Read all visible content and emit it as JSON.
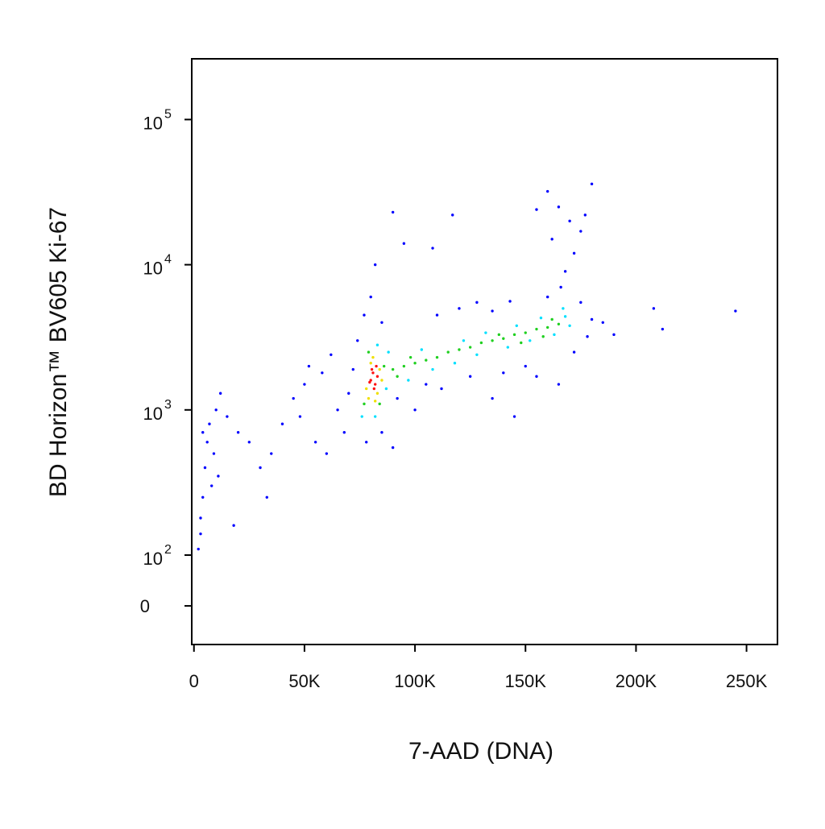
{
  "chart_data": {
    "type": "scatter",
    "x_label": "7-AAD (DNA)",
    "y_label": "BD Horizon™ BV605 Ki-67",
    "xlim": [
      -1000,
      264000
    ],
    "xticks": [
      0,
      {
        "value": 50000,
        "label": "50K"
      },
      {
        "value": 100000,
        "label": "100K"
      },
      {
        "value": 150000,
        "label": "150K"
      },
      {
        "value": 200000,
        "label": "200K"
      },
      {
        "value": 250000,
        "label": "250K"
      }
    ],
    "ylim": [
      -76,
      262000
    ],
    "y_scale": "biexponential",
    "yticks": [
      0,
      {
        "value": 100,
        "label": "10",
        "power": "2"
      },
      {
        "value": 1000,
        "label": "10",
        "power": "3"
      },
      {
        "value": 10000,
        "label": "10",
        "power": "4"
      },
      {
        "value": 100000,
        "label": "10",
        "power": "5"
      }
    ],
    "series": [
      {
        "color": "#0000ff",
        "x": [
          2000,
          3000,
          4000,
          5000,
          6000,
          7000,
          4000,
          9000,
          10000,
          12000,
          15000,
          18000,
          8000,
          3000,
          11000,
          20000,
          25000,
          30000,
          33000,
          35000,
          40000,
          45000,
          50000,
          48000,
          55000,
          60000,
          65000,
          70000,
          72000,
          62000,
          58000,
          52000,
          68000,
          74000,
          77000,
          80000,
          78000,
          85000,
          90000,
          92000,
          100000,
          105000,
          112000,
          125000,
          135000,
          145000,
          140000,
          150000,
          155000,
          165000,
          172000,
          178000,
          175000,
          180000,
          190000,
          208000,
          212000,
          245000,
          90000,
          95000,
          117000,
          108000,
          120000,
          128000,
          143000,
          155000,
          160000,
          165000,
          170000,
          175000,
          180000,
          172000,
          168000,
          162000,
          177000,
          166000,
          82000,
          85000,
          110000,
          135000,
          160000,
          185000
        ],
        "values": [
          110,
          180,
          250,
          400,
          600,
          800,
          700,
          500,
          1000,
          1300,
          900,
          160,
          300,
          140,
          350,
          700,
          600,
          400,
          250,
          500,
          800,
          1200,
          1500,
          900,
          600,
          500,
          1000,
          1300,
          1900,
          2400,
          1800,
          2000,
          700,
          3000,
          4500,
          6000,
          600,
          700,
          550,
          1200,
          1000,
          1500,
          1400,
          1700,
          1200,
          900,
          1800,
          2000,
          1700,
          1500,
          2500,
          3200,
          5500,
          4200,
          3300,
          5000,
          3600,
          4800,
          23000,
          14000,
          22000,
          13000,
          5000,
          5500,
          5600,
          24000,
          32000,
          25000,
          20000,
          17000,
          36000,
          12000,
          9000,
          15000,
          22000,
          7000,
          10000,
          4000,
          4500,
          4800,
          6000,
          4000
        ]
      },
      {
        "color": "#00e0ff",
        "x": [
          76000,
          88000,
          87000,
          97000,
          103000,
          108000,
          118000,
          122000,
          128000,
          132000,
          142000,
          146000,
          152000,
          157000,
          163000,
          168000,
          170000,
          167000,
          82000,
          83000
        ],
        "values": [
          900,
          2500,
          1400,
          1600,
          2600,
          1900,
          2100,
          3000,
          2400,
          3400,
          2700,
          3800,
          3000,
          4300,
          3300,
          4400,
          3800,
          5000,
          900,
          2800
        ]
      },
      {
        "color": "#20d020",
        "x": [
          77000,
          86000,
          79000,
          84000,
          90000,
          95000,
          100000,
          105000,
          110000,
          115000,
          120000,
          125000,
          130000,
          135000,
          140000,
          145000,
          150000,
          155000,
          160000,
          165000,
          158000,
          162000,
          148000,
          138000,
          92000,
          98000
        ],
        "values": [
          1100,
          2000,
          2500,
          1100,
          1900,
          2000,
          2100,
          2200,
          2300,
          2500,
          2600,
          2700,
          2900,
          3000,
          3100,
          3300,
          3400,
          3600,
          3700,
          3900,
          3200,
          4200,
          2900,
          3300,
          1700,
          2300
        ]
      },
      {
        "color": "#f0e000",
        "x": [
          78000,
          84000,
          80000,
          83000,
          79000,
          85000,
          81000,
          82000
        ],
        "values": [
          1400,
          1900,
          2100,
          1300,
          1200,
          1600,
          2300,
          1150
        ]
      },
      {
        "color": "#ff1010",
        "x": [
          80000,
          81000,
          82000,
          83000,
          81500,
          80500,
          82500,
          79500
        ],
        "values": [
          1600,
          1800,
          1500,
          1700,
          1400,
          1900,
          2000,
          1550
        ]
      }
    ]
  }
}
